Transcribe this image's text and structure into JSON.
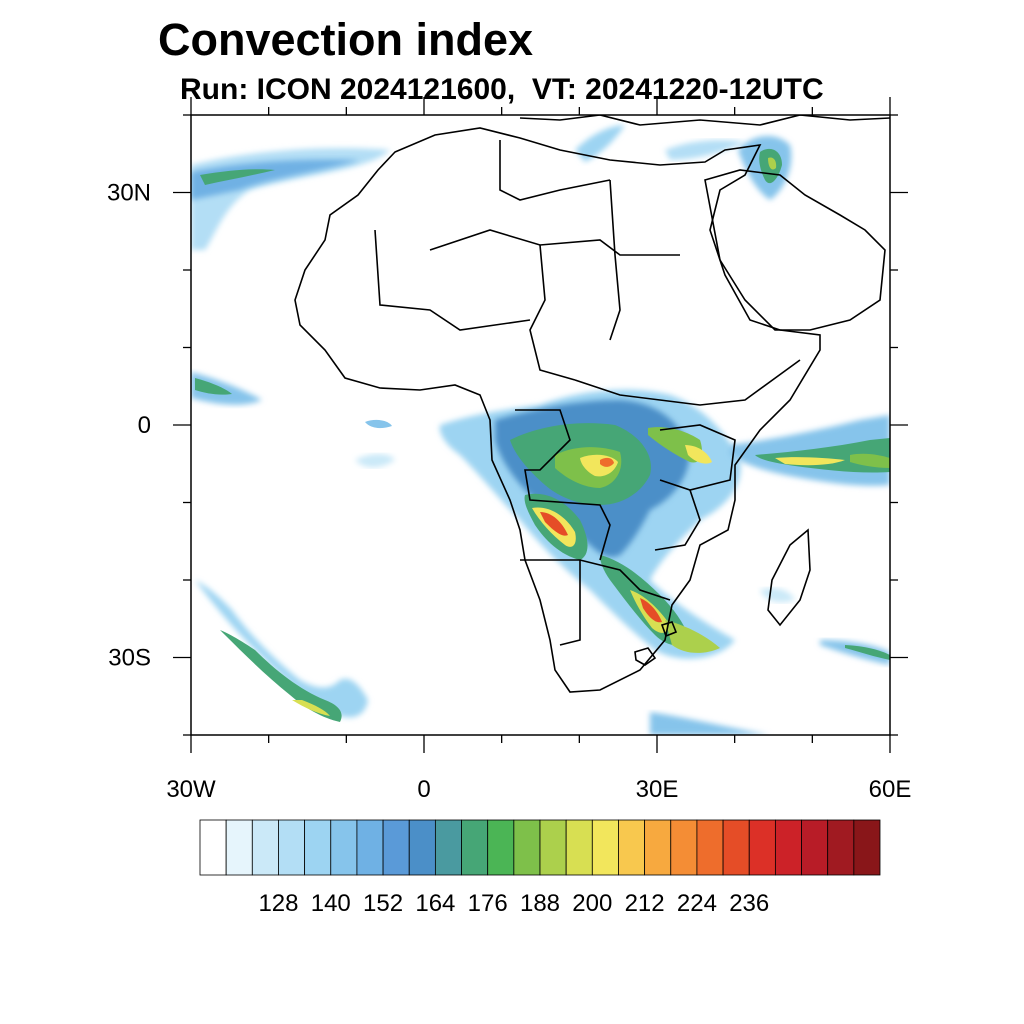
{
  "title": "Convection index",
  "subtitle": "Run: ICON 2024121600,  VT: 20241220-12UTC",
  "lat_ticks": [
    {
      "label": "30N",
      "lat": 30
    },
    {
      "label": "0",
      "lat": 0
    },
    {
      "label": "30S",
      "lat": -30
    }
  ],
  "lon_ticks": [
    {
      "label": "30W",
      "lon": -30
    },
    {
      "label": "0",
      "lon": 0
    },
    {
      "label": "30E",
      "lon": 30
    },
    {
      "label": "60E",
      "lon": 60
    }
  ],
  "map_extent": {
    "lon_min": -30,
    "lon_max": 60,
    "lat_min": -40,
    "lat_max": 40
  },
  "colorbar": {
    "labels": [
      "128",
      "140",
      "152",
      "164",
      "176",
      "188",
      "200",
      "212",
      "224",
      "236"
    ],
    "colors": [
      "#ffffff",
      "#e6f5fc",
      "#cbe9f8",
      "#b3def5",
      "#9dd4f2",
      "#86c4eb",
      "#6fb1e4",
      "#5a9ad8",
      "#4b8fc8",
      "#4a9aa0",
      "#46a676",
      "#4bb555",
      "#7ec04a",
      "#acd04c",
      "#d8df52",
      "#f2e65c",
      "#f8c84e",
      "#f7a93f",
      "#f48d35",
      "#ee6d2c",
      "#e54d27",
      "#dc3027",
      "#cc2228",
      "#b81c27",
      "#a01a21",
      "#891619"
    ]
  },
  "colors": {
    "frame": "#000000",
    "coast": "#000000"
  }
}
